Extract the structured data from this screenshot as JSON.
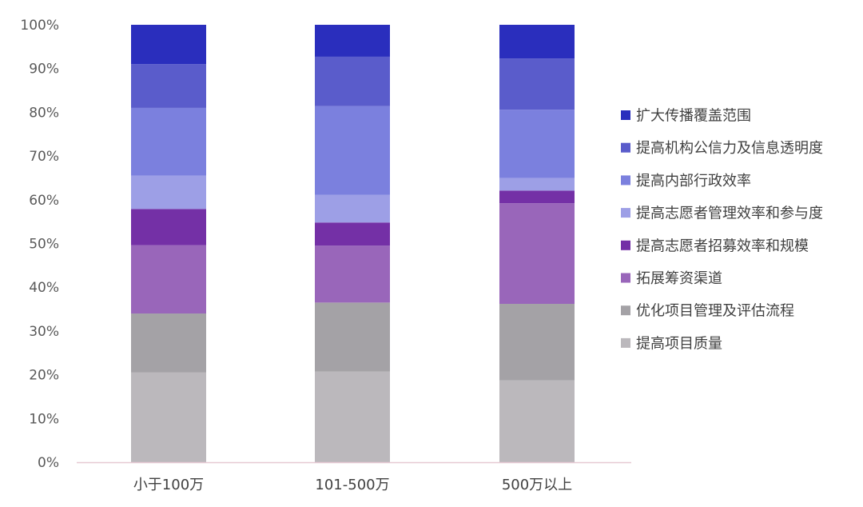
{
  "chart_data": {
    "type": "bar",
    "stacked": true,
    "percent": true,
    "categories": [
      "小于100万",
      "101-500万",
      "500万以上"
    ],
    "ylim": [
      0,
      100
    ],
    "yticks": [
      "0%",
      "10%",
      "20%",
      "30%",
      "40%",
      "50%",
      "60%",
      "70%",
      "80%",
      "90%",
      "100%"
    ],
    "grid": false,
    "legend_position": "right",
    "series": [
      {
        "name": "提高项目质量",
        "color": "#bbb8bc",
        "values": [
          20.5,
          20.7,
          18.7
        ]
      },
      {
        "name": "优化项目管理及评估流程",
        "color": "#a4a2a6",
        "values": [
          13.5,
          15.8,
          17.5
        ]
      },
      {
        "name": "拓展筹资渠道",
        "color": "#9966ba",
        "values": [
          15.6,
          13.0,
          23.0
        ]
      },
      {
        "name": "提高志愿者招募效率和规模",
        "color": "#7430a6",
        "values": [
          8.3,
          5.3,
          2.9
        ]
      },
      {
        "name": "提高志愿者管理效率和参与度",
        "color": "#9d9fe6",
        "values": [
          7.6,
          6.3,
          2.9
        ]
      },
      {
        "name": "提高内部行政效率",
        "color": "#7b80de",
        "values": [
          15.5,
          20.3,
          15.6
        ]
      },
      {
        "name": "提高机构公信力及信息透明度",
        "color": "#5a5ccb",
        "values": [
          10.0,
          11.3,
          11.7
        ]
      },
      {
        "name": "扩大传播覆盖范围",
        "color": "#2a2ebd",
        "values": [
          9.0,
          7.3,
          7.7
        ]
      }
    ]
  }
}
